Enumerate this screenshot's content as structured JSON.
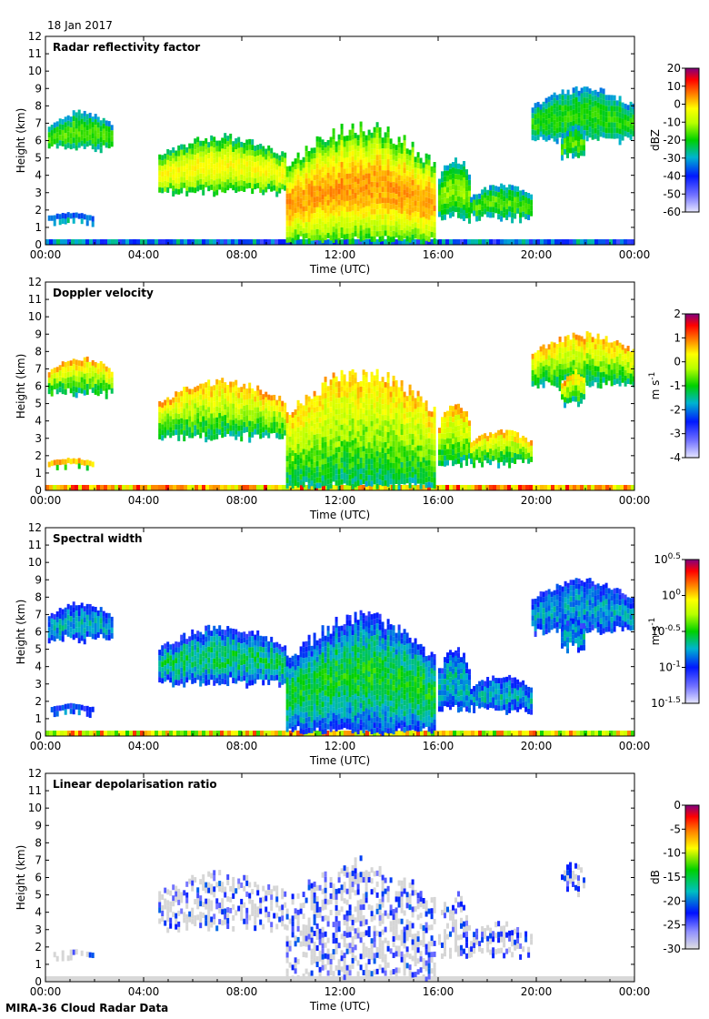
{
  "header": {
    "date": "18 Jan 2017"
  },
  "footer": {
    "label": "MIRA-36 Cloud Radar Data"
  },
  "axes": {
    "xlabel": "Time (UTC)",
    "ylabel": "Height (km)",
    "xticks": [
      "00:00",
      "04:00",
      "08:00",
      "12:00",
      "16:00",
      "20:00",
      "00:00"
    ],
    "yticks": [
      "0",
      "1",
      "2",
      "3",
      "4",
      "5",
      "6",
      "7",
      "8",
      "9",
      "10",
      "11",
      "12"
    ]
  },
  "chart_data": [
    {
      "type": "heatmap",
      "title": "Radar reflectivity factor",
      "xlabel": "Time (UTC)",
      "ylabel": "Height (km)",
      "xlim": [
        0,
        24
      ],
      "ylim": [
        0,
        12
      ],
      "colorbar": {
        "label": "dBZ",
        "min": -60,
        "max": 20,
        "ticks": [
          "20",
          "10",
          "0",
          "-10",
          "-20",
          "-30",
          "-40",
          "-50",
          "-60"
        ]
      }
    },
    {
      "type": "heatmap",
      "title": "Doppler velocity",
      "xlabel": "Time (UTC)",
      "ylabel": "Height (km)",
      "xlim": [
        0,
        24
      ],
      "ylim": [
        0,
        12
      ],
      "colorbar": {
        "label": "m s-1",
        "min": -4,
        "max": 2,
        "ticks": [
          "2",
          "1",
          "0",
          "-1",
          "-2",
          "-3",
          "-4"
        ]
      }
    },
    {
      "type": "heatmap",
      "title": "Spectral width",
      "xlabel": "Time (UTC)",
      "ylabel": "Height (km)",
      "xlim": [
        0,
        24
      ],
      "ylim": [
        0,
        12
      ],
      "colorbar": {
        "label": "m s-1",
        "min": -1.5,
        "max": 0.5,
        "log": true,
        "ticks": [
          "10^0.5",
          "10^0",
          "10^-0.5",
          "10^-1",
          "10^-1.5"
        ]
      }
    },
    {
      "type": "heatmap",
      "title": "Linear depolarisation ratio",
      "xlabel": "Time (UTC)",
      "ylabel": "Height (km)",
      "xlim": [
        0,
        24
      ],
      "ylim": [
        0,
        12
      ],
      "colorbar": {
        "label": "dB",
        "min": -30,
        "max": 0,
        "ticks": [
          "0",
          "-5",
          "-10",
          "-15",
          "-20",
          "-25",
          "-30"
        ]
      }
    }
  ],
  "clouds": [
    {
      "t0": 0.1,
      "t1": 2.7,
      "bot": 5.5,
      "top": 7.8,
      "v": 0.45
    },
    {
      "t0": 0.1,
      "t1": 1.9,
      "bot": 1.3,
      "top": 1.9,
      "v": 0.25
    },
    {
      "t0": 4.6,
      "t1": 9.8,
      "bot": 3.0,
      "top": 6.5,
      "v": 0.7
    },
    {
      "t0": 9.8,
      "t1": 15.9,
      "bot": 0.2,
      "top": 7.3,
      "v": 0.85
    },
    {
      "t0": 16.0,
      "t1": 17.3,
      "bot": 1.5,
      "top": 5.3,
      "v": 0.5
    },
    {
      "t0": 17.3,
      "t1": 19.8,
      "bot": 1.5,
      "top": 3.6,
      "v": 0.45
    },
    {
      "t0": 19.8,
      "t1": 24,
      "bot": 6.0,
      "top": 9.2,
      "v": 0.4
    },
    {
      "t0": 21.0,
      "t1": 22.0,
      "bot": 5.0,
      "top": 7.0,
      "v": 0.45
    }
  ]
}
